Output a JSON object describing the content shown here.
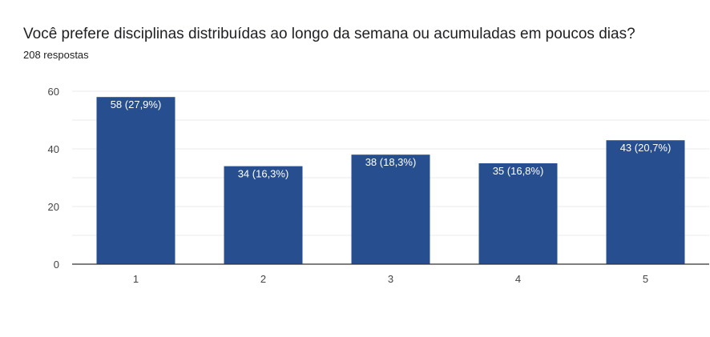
{
  "question": {
    "title": "Você prefere disciplinas distribuídas ao longo da semana ou acumuladas em poucos dias?",
    "responses": "208 respostas"
  },
  "colors": {
    "bar": "#274f8f",
    "grid": "#ebebeb",
    "axis": "#333333"
  },
  "chart_data": {
    "type": "bar",
    "title": "Você prefere disciplinas distribuídas ao longo da semana ou acumuladas em poucos dias?",
    "xlabel": "",
    "ylabel": "",
    "categories": [
      "1",
      "2",
      "3",
      "4",
      "5"
    ],
    "values": [
      58,
      34,
      38,
      35,
      43
    ],
    "data_labels": [
      "58 (27,9%)",
      "34 (16,3%)",
      "38 (18,3%)",
      "35 (16,8%)",
      "43 (20,7%)"
    ],
    "y_ticks": [
      0,
      20,
      40,
      60
    ],
    "ylim": [
      0,
      60
    ],
    "grid": true,
    "legend": "none"
  }
}
